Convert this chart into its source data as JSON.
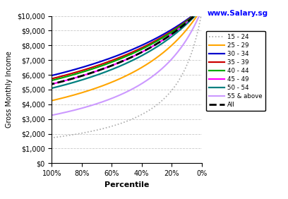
{
  "title": "www.Salary.sg",
  "xlabel": "Percentile",
  "ylabel": "Gross Monthly Income",
  "x_ticks": [
    100,
    80,
    60,
    40,
    20,
    0
  ],
  "x_tick_labels": [
    "100%",
    "80%",
    "60%",
    "40%",
    "20%",
    "0%"
  ],
  "ylim": [
    0,
    10000
  ],
  "y_ticks": [
    0,
    1000,
    2000,
    3000,
    4000,
    5000,
    6000,
    7000,
    8000,
    9000,
    10000
  ],
  "series": [
    {
      "label": "15 - 24",
      "color": "#aaaaaa",
      "linestyle": "dotted",
      "linewidth": 1.2,
      "a": 180000,
      "b": 18,
      "c": 200
    },
    {
      "label": "25 - 29",
      "color": "#ffa500",
      "linestyle": "solid",
      "linewidth": 1.5,
      "a": 600000,
      "b": 60,
      "c": 500
    },
    {
      "label": "30 - 34",
      "color": "#0000cc",
      "linestyle": "solid",
      "linewidth": 1.6,
      "a": 1200000,
      "b": 120,
      "c": 500
    },
    {
      "label": "35 - 39",
      "color": "#cc0000",
      "linestyle": "solid",
      "linewidth": 1.6,
      "a": 1100000,
      "b": 110,
      "c": 500
    },
    {
      "label": "40 - 44",
      "color": "#00aa00",
      "linestyle": "solid",
      "linewidth": 1.6,
      "a": 1050000,
      "b": 105,
      "c": 500
    },
    {
      "label": "45 - 49",
      "color": "#ff00ff",
      "linestyle": "solid",
      "linewidth": 1.6,
      "a": 950000,
      "b": 95,
      "c": 500
    },
    {
      "label": "50 - 54",
      "color": "#008080",
      "linestyle": "solid",
      "linewidth": 1.6,
      "a": 850000,
      "b": 85,
      "c": 500
    },
    {
      "label": "55 & above",
      "color": "#cc99ff",
      "linestyle": "solid",
      "linewidth": 1.5,
      "a": 400000,
      "b": 40,
      "c": 400
    },
    {
      "label": "All",
      "color": "#000000",
      "linestyle": "dashed",
      "linewidth": 2.0,
      "a": 950000,
      "b": 95,
      "c": 500
    }
  ],
  "background_color": "#ffffff",
  "grid_color": "#bbbbbb"
}
